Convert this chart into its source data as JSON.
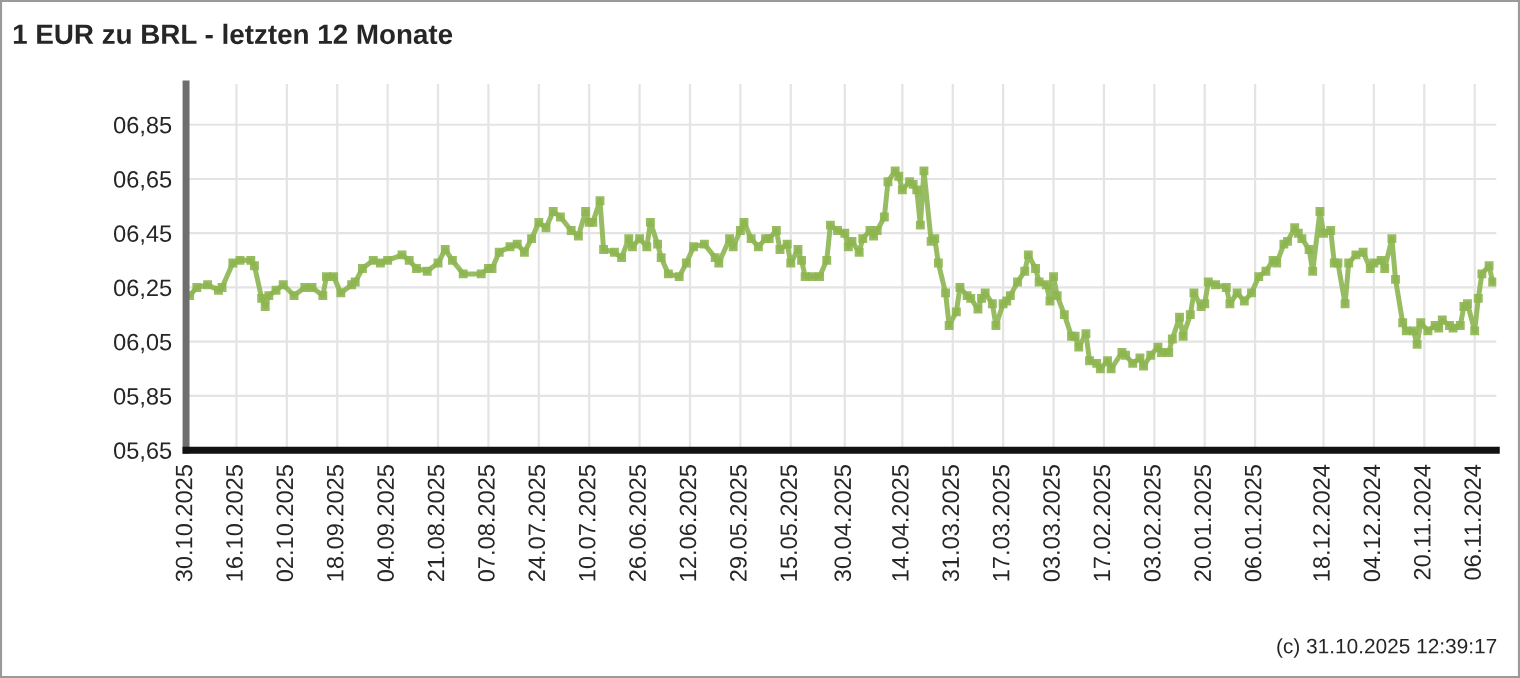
{
  "chart_data": {
    "type": "line",
    "title": "1 EUR zu BRL - letzten 12 Monate",
    "annotations": [
      "(c) 31.10.2025 12:39:17"
    ],
    "x": [
      "2025-10-29",
      "2025-10-27",
      "2025-10-24",
      "2025-10-21",
      "2025-10-20",
      "2025-10-17",
      "2025-10-15",
      "2025-10-12",
      "2025-10-11",
      "2025-10-09",
      "2025-10-08",
      "2025-10-07",
      "2025-10-05",
      "2025-10-03",
      "2025-09-30",
      "2025-09-27",
      "2025-09-25",
      "2025-09-22",
      "2025-09-21",
      "2025-09-19",
      "2025-09-17",
      "2025-09-14",
      "2025-09-13",
      "2025-09-11",
      "2025-09-08",
      "2025-09-06",
      "2025-09-04",
      "2025-08-31",
      "2025-08-29",
      "2025-08-27",
      "2025-08-24",
      "2025-08-21",
      "2025-08-19",
      "2025-08-17",
      "2025-08-14",
      "2025-08-09",
      "2025-08-07",
      "2025-08-06",
      "2025-08-04",
      "2025-08-01",
      "2025-07-30",
      "2025-07-28",
      "2025-07-26",
      "2025-07-24",
      "2025-07-22",
      "2025-07-20",
      "2025-07-18",
      "2025-07-15",
      "2025-07-13",
      "2025-07-11",
      "2025-07-10",
      "2025-07-09",
      "2025-07-07",
      "2025-07-06",
      "2025-07-03",
      "2025-07-01",
      "2025-06-29",
      "2025-06-28",
      "2025-06-26",
      "2025-06-24",
      "2025-06-23",
      "2025-06-21",
      "2025-06-20",
      "2025-06-18",
      "2025-06-15",
      "2025-06-13",
      "2025-06-11",
      "2025-06-08",
      "2025-06-05",
      "2025-06-04",
      "2025-06-01",
      "2025-05-31",
      "2025-05-29",
      "2025-05-28",
      "2025-05-26",
      "2025-05-24",
      "2025-05-22",
      "2025-05-21",
      "2025-05-19",
      "2025-05-18",
      "2025-05-16",
      "2025-05-15",
      "2025-05-13",
      "2025-05-12",
      "2025-05-11",
      "2025-05-09",
      "2025-05-07",
      "2025-05-05",
      "2025-05-04",
      "2025-05-02",
      "2025-04-30",
      "2025-04-29",
      "2025-04-28",
      "2025-04-26",
      "2025-04-25",
      "2025-04-23",
      "2025-04-22",
      "2025-04-21",
      "2025-04-19",
      "2025-04-18",
      "2025-04-16",
      "2025-04-15",
      "2025-04-14",
      "2025-04-12",
      "2025-04-11",
      "2025-04-10",
      "2025-04-09",
      "2025-04-08",
      "2025-04-06",
      "2025-04-05",
      "2025-04-04",
      "2025-04-02",
      "2025-04-01",
      "2025-03-30",
      "2025-03-29",
      "2025-03-27",
      "2025-03-26",
      "2025-03-24",
      "2025-03-23",
      "2025-03-22",
      "2025-03-20",
      "2025-03-19",
      "2025-03-17",
      "2025-03-16",
      "2025-03-15",
      "2025-03-13",
      "2025-03-11",
      "2025-03-10",
      "2025-03-08",
      "2025-03-07",
      "2025-03-05",
      "2025-03-04",
      "2025-03-03",
      "2025-03-02",
      "2025-02-28",
      "2025-02-26",
      "2025-02-25",
      "2025-02-24",
      "2025-02-22",
      "2025-02-21",
      "2025-02-19",
      "2025-02-18",
      "2025-02-16",
      "2025-02-15",
      "2025-02-12",
      "2025-02-11",
      "2025-02-09",
      "2025-02-07",
      "2025-02-06",
      "2025-02-04",
      "2025-02-02",
      "2025-02-01",
      "2025-01-30",
      "2025-01-29",
      "2025-01-27",
      "2025-01-26",
      "2025-01-24",
      "2025-01-23",
      "2025-01-21",
      "2025-01-20",
      "2025-01-19",
      "2025-01-17",
      "2025-01-14",
      "2025-01-13",
      "2025-01-11",
      "2025-01-09",
      "2025-01-07",
      "2025-01-05",
      "2025-01-03",
      "2025-01-01",
      "2024-12-31",
      "2024-12-29",
      "2024-12-28",
      "2024-12-26",
      "2024-12-25",
      "2024-12-24",
      "2024-12-22",
      "2024-12-21",
      "2024-12-19",
      "2024-12-18",
      "2024-12-16",
      "2024-12-15",
      "2024-12-14",
      "2024-12-12",
      "2024-12-11",
      "2024-12-09",
      "2024-12-07",
      "2024-12-05",
      "2024-12-04",
      "2024-12-02",
      "2024-12-01",
      "2024-11-29",
      "2024-11-28",
      "2024-11-26",
      "2024-11-25",
      "2024-11-23",
      "2024-11-22",
      "2024-11-21",
      "2024-11-19",
      "2024-11-17",
      "2024-11-16",
      "2024-11-15",
      "2024-11-13",
      "2024-11-12",
      "2024-11-10",
      "2024-11-09",
      "2024-11-08",
      "2024-11-06",
      "2024-11-05",
      "2024-11-04",
      "2024-11-02",
      "2024-11-01"
    ],
    "series": [
      {
        "color": "#8db550",
        "values": [
          6.22,
          6.25,
          6.26,
          6.24,
          6.25,
          6.34,
          6.35,
          6.35,
          6.33,
          6.21,
          6.18,
          6.22,
          6.24,
          6.26,
          6.22,
          6.25,
          6.25,
          6.22,
          6.29,
          6.29,
          6.23,
          6.26,
          6.27,
          6.32,
          6.35,
          6.34,
          6.35,
          6.37,
          6.35,
          6.32,
          6.31,
          6.34,
          6.39,
          6.35,
          6.3,
          6.3,
          6.32,
          6.32,
          6.38,
          6.4,
          6.41,
          6.38,
          6.43,
          6.49,
          6.47,
          6.53,
          6.51,
          6.46,
          6.44,
          6.53,
          6.49,
          6.49,
          6.57,
          6.39,
          6.38,
          6.36,
          6.43,
          6.4,
          6.43,
          6.4,
          6.49,
          6.41,
          6.36,
          6.3,
          6.29,
          6.34,
          6.4,
          6.41,
          6.36,
          6.34,
          6.43,
          6.4,
          6.46,
          6.49,
          6.43,
          6.4,
          6.43,
          6.43,
          6.46,
          6.39,
          6.41,
          6.34,
          6.39,
          6.35,
          6.29,
          6.29,
          6.29,
          6.35,
          6.48,
          6.46,
          6.45,
          6.4,
          6.42,
          6.38,
          6.43,
          6.46,
          6.44,
          6.46,
          6.51,
          6.64,
          6.68,
          6.66,
          6.61,
          6.64,
          6.63,
          6.61,
          6.48,
          6.68,
          6.42,
          6.43,
          6.34,
          6.23,
          6.11,
          6.16,
          6.25,
          6.22,
          6.21,
          6.17,
          6.21,
          6.23,
          6.19,
          6.11,
          6.19,
          6.2,
          6.22,
          6.27,
          6.31,
          6.37,
          6.32,
          6.27,
          6.26,
          6.2,
          6.29,
          6.22,
          6.15,
          6.07,
          6.07,
          6.03,
          6.08,
          5.98,
          5.97,
          5.95,
          5.98,
          5.95,
          6.01,
          6.0,
          5.97,
          5.99,
          5.96,
          6.0,
          6.03,
          6.01,
          6.01,
          6.06,
          6.14,
          6.07,
          6.15,
          6.23,
          6.18,
          6.19,
          6.27,
          6.26,
          6.25,
          6.19,
          6.23,
          6.2,
          6.23,
          6.29,
          6.31,
          6.35,
          6.34,
          6.41,
          6.42,
          6.47,
          6.45,
          6.43,
          6.39,
          6.31,
          6.53,
          6.45,
          6.46,
          6.34,
          6.34,
          6.19,
          6.34,
          6.37,
          6.38,
          6.32,
          6.34,
          6.35,
          6.32,
          6.43,
          6.28,
          6.12,
          6.09,
          6.09,
          6.04,
          6.12,
          6.09,
          6.11,
          6.1,
          6.13,
          6.11,
          6.1,
          6.11,
          6.18,
          6.19,
          6.09,
          6.21,
          6.3,
          6.33,
          6.27
        ]
      }
    ],
    "marker": "square",
    "line_style": "solid",
    "grid": true,
    "xlim": [
      "2025-10-30",
      "2024-10-31"
    ],
    "xticks": [
      {
        "value": "2025-10-30",
        "label": "30.10.2025"
      },
      {
        "value": "2025-10-16",
        "label": "16.10.2025"
      },
      {
        "value": "2025-10-02",
        "label": "02.10.2025"
      },
      {
        "value": "2025-09-18",
        "label": "18.09.2025"
      },
      {
        "value": "2025-09-04",
        "label": "04.09.2025"
      },
      {
        "value": "2025-08-21",
        "label": "21.08.2025"
      },
      {
        "value": "2025-08-07",
        "label": "07.08.2025"
      },
      {
        "value": "2025-07-24",
        "label": "24.07.2025"
      },
      {
        "value": "2025-07-10",
        "label": "10.07.2025"
      },
      {
        "value": "2025-06-26",
        "label": "26.06.2025"
      },
      {
        "value": "2025-06-12",
        "label": "12.06.2025"
      },
      {
        "value": "2025-05-29",
        "label": "29.05.2025"
      },
      {
        "value": "2025-05-15",
        "label": "15.05.2025"
      },
      {
        "value": "2025-04-30",
        "label": "30.04.2025"
      },
      {
        "value": "2025-04-14",
        "label": "14.04.2025"
      },
      {
        "value": "2025-03-31",
        "label": "31.03.2025"
      },
      {
        "value": "2025-03-17",
        "label": "17.03.2025"
      },
      {
        "value": "2025-03-03",
        "label": "03.03.2025"
      },
      {
        "value": "2025-02-17",
        "label": "17.02.2025"
      },
      {
        "value": "2025-02-03",
        "label": "03.02.2025"
      },
      {
        "value": "2025-01-20",
        "label": "20.01.2025"
      },
      {
        "value": "2025-01-06",
        "label": "06.01.2025"
      },
      {
        "value": "2024-12-18",
        "label": "18.12.2024"
      },
      {
        "value": "2024-12-04",
        "label": "04.12.2024"
      },
      {
        "value": "2024-11-20",
        "label": "20.11.2024"
      },
      {
        "value": "2024-11-06",
        "label": "06.11.2024"
      }
    ],
    "ylim": [
      5.65,
      7.0
    ],
    "yticks": [
      {
        "value": 5.65,
        "label": "05,65"
      },
      {
        "value": 5.85,
        "label": "05,85"
      },
      {
        "value": 6.05,
        "label": "06,05"
      },
      {
        "value": 6.25,
        "label": "06,25"
      },
      {
        "value": 6.45,
        "label": "06,45"
      },
      {
        "value": 6.65,
        "label": "06,65"
      },
      {
        "value": 6.85,
        "label": "06,85"
      }
    ]
  }
}
